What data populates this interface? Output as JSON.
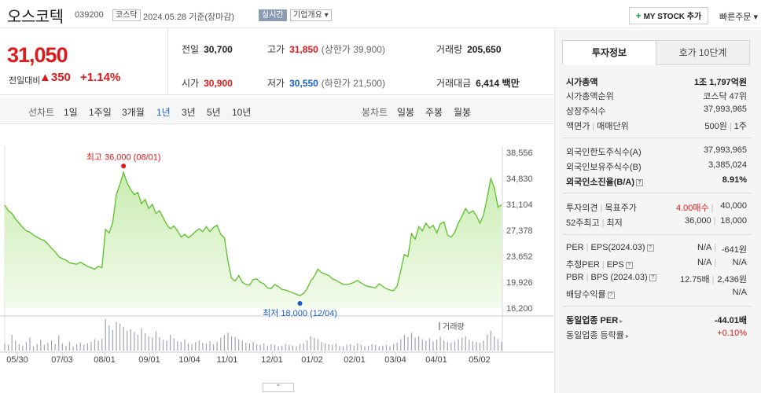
{
  "header": {
    "stock_name": "오스코텍",
    "code": "039200",
    "market": "코스닥",
    "date": "2024.05.28 기준(장마감)",
    "realtime_label": "실시간",
    "company_label": "기업개요 ▾",
    "mystock_label": "MY STOCK 추가",
    "mystock_plus": "+",
    "quick_order": "빠른주문 ▾"
  },
  "price": {
    "current": "31,050",
    "change_label": "전일대비",
    "change_amount": "▲350",
    "change_percent": "+1.14%"
  },
  "stats": {
    "prev_label": "전일",
    "prev_value": "30,700",
    "high_label": "고가",
    "high_value": "31,850",
    "upper_limit": "(상한가 39,900)",
    "volume_label": "거래량",
    "volume_value": "205,650",
    "open_label": "시가",
    "open_value": "30,900",
    "low_label": "저가",
    "low_value": "30,550",
    "lower_limit": "(하한가 21,500)",
    "amount_label": "거래대금",
    "amount_value": "6,414 백만"
  },
  "period_bar": {
    "line_title": "선차트",
    "line_periods": [
      "1일",
      "1주일",
      "3개월",
      "1년",
      "3년",
      "5년",
      "10년"
    ],
    "active": "1년",
    "candle_title": "봉차트",
    "candle_periods": [
      "일봉",
      "주봉",
      "월봉"
    ]
  },
  "chart_data": {
    "type": "area",
    "title": "",
    "y_ticks": [
      "38,556",
      "34,830",
      "31,104",
      "27,378",
      "23,652",
      "19,926",
      "16,200"
    ],
    "ylim": [
      16200,
      38556
    ],
    "x_ticks": [
      "05/30",
      "07/03",
      "08/01",
      "09/01",
      "10/04",
      "11/01",
      "12/01",
      "01/02",
      "02/01",
      "03/04",
      "04/01",
      "05/02"
    ],
    "series": [
      {
        "values": [
          31000,
          30200,
          29800,
          29000,
          28400,
          27800,
          27300,
          27100,
          26700,
          26400,
          26100,
          25900,
          25400,
          24800,
          24300,
          23600,
          23300,
          23100,
          22700,
          22600,
          22500,
          22800,
          22500,
          22200,
          22000,
          21800,
          22200,
          22000,
          27500,
          27000,
          28500,
          32500,
          34000,
          35700,
          34200,
          33200,
          32500,
          32800,
          31200,
          31800,
          30500,
          31100,
          29800,
          30200,
          29200,
          28200,
          27600,
          28000,
          27300,
          26400,
          26800,
          26300,
          26700,
          27200,
          27600,
          27200,
          27900,
          27200,
          27800,
          28100,
          26800,
          26300,
          23000,
          20500,
          20100,
          20900,
          19900,
          19600,
          19500,
          20300,
          20400,
          19900,
          19700,
          19100,
          19000,
          19600,
          19300,
          18900,
          18800,
          18600,
          18400,
          18200,
          18000,
          18300,
          19000,
          20100,
          20800,
          21800,
          21300,
          21100,
          20900,
          20400,
          20200,
          19900,
          19600,
          19600,
          19700,
          19900,
          20200,
          19800,
          19500,
          19300,
          19200,
          19100,
          19700,
          19300,
          19000,
          18800,
          18700,
          19400,
          21600,
          23900,
          23600,
          26900,
          26100,
          27900,
          27300,
          28400,
          27700,
          28100,
          27000,
          28300,
          28600,
          26700,
          26400,
          27100,
          28400,
          29400,
          30500,
          29800,
          30200,
          29500,
          28400,
          29600,
          32100,
          34800,
          33500,
          30700,
          31050
        ],
        "volume": [
          10,
          8,
          22,
          14,
          9,
          7,
          12,
          18,
          6,
          9,
          15,
          8,
          11,
          14,
          9,
          21,
          10,
          7,
          12,
          6,
          9,
          11,
          8,
          10,
          12,
          16,
          14,
          17,
          44,
          35,
          29,
          40,
          38,
          33,
          28,
          30,
          26,
          22,
          31,
          24,
          20,
          18,
          27,
          19,
          15,
          14,
          22,
          17,
          13,
          12,
          16,
          10,
          9,
          12,
          14,
          11,
          10,
          13,
          9,
          12,
          18,
          22,
          25,
          20,
          19,
          16,
          14,
          11,
          10,
          12,
          9,
          8,
          10,
          7,
          9,
          8,
          6,
          7,
          9,
          8,
          7,
          6,
          9,
          10,
          14,
          20,
          18,
          16,
          12,
          10,
          9,
          8,
          10,
          7,
          6,
          8,
          9,
          7,
          10,
          8,
          6,
          7,
          9,
          8,
          6,
          7,
          8,
          6,
          9,
          11,
          16,
          22,
          19,
          25,
          18,
          20,
          16,
          14,
          17,
          13,
          15,
          19,
          14,
          12,
          11,
          13,
          16,
          18,
          20,
          15,
          13,
          12,
          11,
          14,
          22,
          28,
          20,
          16,
          12
        ]
      }
    ],
    "high_annotation": "최고 36,000 (08/01)",
    "low_annotation": "최저 18,000 (12/04)",
    "volume_legend": "거래량",
    "colors": {
      "line": "#5bbf2a",
      "fill": "#e2f6d4",
      "high": "#e0191b",
      "low": "#1a5fc7",
      "volume": "#9ea3b8"
    }
  },
  "collapse_label": "⌃",
  "right_panel": {
    "tab_active": "투자정보",
    "tab_inactive": "호가 10단계",
    "rows1": [
      {
        "k": "시가총액",
        "v": "1조 1,797억원",
        "bold": true
      },
      {
        "k": "시가총액순위",
        "v": "코스닥 47위"
      },
      {
        "k": "상장주식수",
        "v": "37,993,965"
      },
      {
        "k": "액면가",
        "k2": "매매단위",
        "v": "500원",
        "v2": "1주"
      }
    ],
    "rows2": [
      {
        "k": "외국인한도주식수(A)",
        "v": "37,993,965"
      },
      {
        "k": "외국인보유주식수(B)",
        "v": "3,385,024"
      },
      {
        "k": "외국인소진율(B/A)",
        "v": "8.91%",
        "bold": true
      }
    ],
    "rows3": [
      {
        "k": "투자의견",
        "k2": "목표주가",
        "m": "4.00매수",
        "v": "40,000"
      },
      {
        "k": "52주최고",
        "k2": "최저",
        "m": "36,000",
        "v": "18,000"
      }
    ],
    "rows4": [
      {
        "k": "PER",
        "k2": "EPS(2024.03)",
        "m": "N/A",
        "v": "-641원"
      },
      {
        "k": "추정PER",
        "k2": "EPS",
        "m": "N/A",
        "v": "N/A"
      },
      {
        "k": "PBR",
        "k2": "BPS (2024.03)",
        "m": "12.75배",
        "v": "2,436원"
      },
      {
        "k": "배당수익률",
        "v": "N/A"
      }
    ],
    "rows5": [
      {
        "k": "동일업종 PER",
        "v": "-44.01배",
        "bold": true
      },
      {
        "k": "동일업종 등락률",
        "v": "+0.10%",
        "red": true
      }
    ]
  }
}
